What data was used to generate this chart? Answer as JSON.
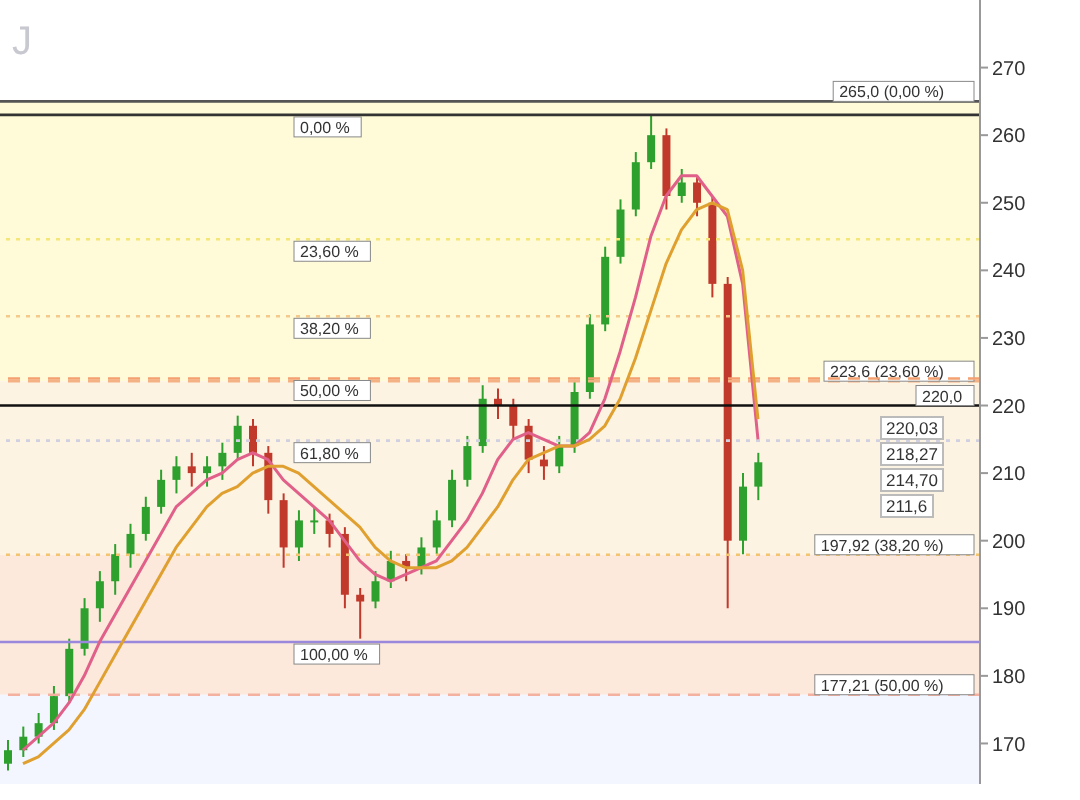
{
  "chart_data": {
    "type": "candlestick",
    "title": "J",
    "categories": [
      null,
      null,
      null,
      null,
      null,
      null,
      null,
      null,
      null,
      null,
      null,
      null,
      null,
      null,
      null,
      null,
      null,
      null,
      null,
      null,
      null,
      null,
      null,
      null,
      null,
      null,
      null,
      null,
      null,
      null,
      null,
      null,
      null,
      null,
      null,
      null,
      null,
      null,
      null,
      null,
      null,
      null,
      null,
      null,
      null,
      null,
      null,
      null,
      null,
      null,
      null,
      null,
      null,
      null,
      null,
      null,
      null,
      null,
      null,
      null,
      null,
      null,
      null,
      null
    ],
    "ohlc": [
      [
        167,
        170.5,
        166,
        169
      ],
      [
        169,
        172.5,
        168,
        171
      ],
      [
        171,
        174.5,
        170,
        173
      ],
      [
        173,
        178.5,
        172,
        177
      ],
      [
        177,
        185.5,
        176,
        184
      ],
      [
        184,
        191.5,
        183,
        190
      ],
      [
        190,
        195.5,
        188,
        194
      ],
      [
        194,
        199.5,
        192,
        198
      ],
      [
        198,
        202.5,
        196,
        201
      ],
      [
        201,
        206.5,
        200,
        205
      ],
      [
        205,
        210.5,
        204,
        209
      ],
      [
        209,
        212.5,
        207,
        211
      ],
      [
        211,
        213,
        208,
        210
      ],
      [
        210,
        212.5,
        208,
        211
      ],
      [
        211,
        214.5,
        209,
        213
      ],
      [
        213,
        218.5,
        212,
        217
      ],
      [
        217,
        218,
        211,
        213
      ],
      [
        213,
        214,
        204,
        206
      ],
      [
        206,
        207,
        196,
        199
      ],
      [
        199,
        204.5,
        197,
        203
      ],
      [
        203,
        205,
        201,
        203
      ],
      [
        203,
        204,
        199,
        201
      ],
      [
        201,
        202,
        190,
        192
      ],
      [
        192,
        193,
        185.5,
        191
      ],
      [
        191,
        195.5,
        190,
        194
      ],
      [
        194,
        198.5,
        193,
        197
      ],
      [
        197,
        198,
        194,
        196
      ],
      [
        196,
        200.5,
        195,
        199
      ],
      [
        199,
        204.5,
        198,
        203
      ],
      [
        203,
        210.5,
        202,
        209
      ],
      [
        209,
        215.5,
        208,
        214
      ],
      [
        214,
        223,
        213,
        221
      ],
      [
        221,
        222.5,
        218,
        220
      ],
      [
        220,
        221,
        215,
        217
      ],
      [
        217,
        218,
        210,
        212
      ],
      [
        212,
        214,
        209,
        211
      ],
      [
        211,
        215.5,
        210,
        214
      ],
      [
        214,
        223.5,
        213,
        222
      ],
      [
        222,
        233.5,
        221,
        232
      ],
      [
        232,
        243.5,
        231,
        242
      ],
      [
        242,
        250.5,
        241,
        249
      ],
      [
        249,
        257.5,
        248,
        256
      ],
      [
        256,
        263,
        255,
        260
      ],
      [
        260,
        261,
        249,
        251
      ],
      [
        251,
        255,
        250,
        253
      ],
      [
        253,
        254,
        248,
        250
      ],
      [
        250,
        251,
        236,
        238
      ],
      [
        238,
        239,
        190,
        200
      ],
      [
        200,
        210,
        198,
        208
      ],
      [
        208,
        213,
        206,
        211.6
      ],
      null,
      null,
      null,
      null,
      null,
      null,
      null,
      null,
      null,
      null,
      null,
      null,
      null,
      null
    ],
    "series": [
      {
        "type": "line",
        "color": "#e0608a",
        "values": [
          null,
          169,
          171,
          173,
          176,
          180,
          185,
          189,
          193,
          197,
          201,
          205,
          207,
          209,
          210,
          212,
          213,
          212,
          209,
          207,
          205,
          203,
          200,
          197,
          195,
          194,
          195,
          196,
          197,
          200,
          203,
          207,
          212,
          215,
          216,
          215,
          214,
          214,
          216,
          221,
          228,
          236,
          245,
          251,
          254,
          254,
          251,
          248,
          238,
          215,
          null,
          null,
          null,
          null,
          null,
          null,
          null,
          null,
          null,
          null,
          null,
          null,
          null,
          null
        ]
      },
      {
        "type": "line",
        "color": "#e0a030",
        "values": [
          null,
          167,
          168,
          170,
          172,
          175,
          179,
          183,
          187,
          191,
          195,
          199,
          202,
          205,
          207,
          208,
          210,
          211,
          211,
          210,
          208,
          206,
          204,
          202,
          199,
          197,
          196,
          196,
          196,
          197,
          199,
          202,
          205,
          209,
          212,
          213,
          214,
          214,
          215,
          217,
          221,
          227,
          234,
          241,
          246,
          249,
          250,
          249,
          240,
          218,
          null,
          null,
          null,
          null,
          null,
          null,
          null,
          null,
          null,
          null,
          null,
          null,
          null,
          null
        ]
      }
    ],
    "ylim": [
      164,
      280
    ],
    "yticks": [
      170,
      180,
      190,
      200,
      210,
      220,
      230,
      240,
      250,
      260,
      270
    ],
    "tick_labels": "y",
    "grid": false,
    "legend": false,
    "ref_lines": [
      {
        "axis": "y",
        "value": 265,
        "label": "265,0 (0,00 %)",
        "color": "#555555",
        "line_style": "solid"
      },
      {
        "axis": "y",
        "value": 263,
        "color": "#333333",
        "line_style": "solid"
      },
      {
        "axis": "y",
        "value": 223.6,
        "label": "223,6 (23,60 %)",
        "color": "#f4b183",
        "line_style": "dashed"
      },
      {
        "axis": "y",
        "value": 244.6,
        "color": "#f5e67a",
        "line_style": "dotted"
      },
      {
        "axis": "y",
        "value": 197.92,
        "label": "197,92 (38,20 %)",
        "color": "#f2c46d",
        "line_style": "dotted"
      },
      {
        "axis": "y",
        "value": 233.2,
        "color": "#f5c98a",
        "line_style": "dotted"
      },
      {
        "axis": "y",
        "value": 177.21,
        "label": "177,21 (50,00 %)",
        "color": "#f4b1a0",
        "line_style": "dashed"
      },
      {
        "axis": "y",
        "value": 224,
        "color": "#f4a070",
        "line_style": "dashed"
      },
      {
        "axis": "y",
        "value": 220,
        "label": "220,0",
        "color": "#111111",
        "line_style": "solid"
      },
      {
        "axis": "y",
        "value": 214.8,
        "color": "#d0d0e0",
        "line_style": "dotted"
      },
      {
        "axis": "y",
        "value": 185,
        "color": "#9a88dd",
        "line_style": "solid"
      }
    ],
    "bands": [
      {
        "axis": "y",
        "from": 223.6,
        "to": 265,
        "color": "#fffbd8"
      },
      {
        "axis": "y",
        "from": 197.92,
        "to": 223.6,
        "color": "#fdf3e2"
      },
      {
        "axis": "y",
        "from": 177.21,
        "to": 197.92,
        "color": "#fde8dc"
      },
      {
        "axis": "y",
        "from": 164,
        "to": 177.21,
        "color": "#f3f6fe"
      }
    ],
    "annotations": [
      {
        "text": "0,00 %",
        "y": 263
      },
      {
        "text": "23,60 %",
        "y": 244.6
      },
      {
        "text": "38,20 %",
        "y": 233.2
      },
      {
        "text": "50,00 %",
        "y": 224
      },
      {
        "text": "61,80 %",
        "y": 214.8
      },
      {
        "text": "100,00 %",
        "y": 185
      },
      "220,03",
      "218,27",
      "214,70",
      "211,6"
    ]
  }
}
